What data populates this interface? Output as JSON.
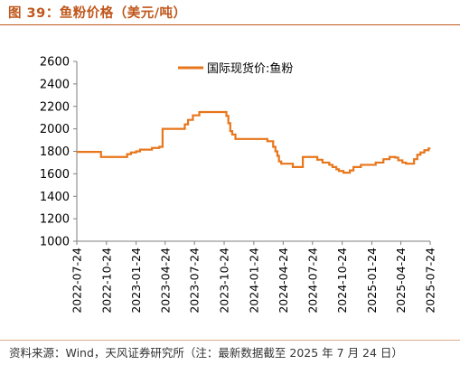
{
  "figure": {
    "title": "图 39：鱼粉价格（美元/吨）",
    "source": "资料来源：Wind，天风证券研究所（注：最新数据截至 2025 年 7 月 24 日）"
  },
  "colors": {
    "accent": "#c0571c",
    "series": "#e8761b"
  },
  "chart_data": {
    "type": "line",
    "title": "",
    "xlabel": "",
    "ylabel": "",
    "ylim": [
      1000,
      2600
    ],
    "yticks": [
      "1000",
      "1200",
      "1400",
      "1600",
      "1800",
      "2000",
      "2200",
      "2400",
      "2600"
    ],
    "xlim": [
      "2022-07-24",
      "2025-07-24"
    ],
    "xticks": [
      "2022-07-24",
      "2022-10-24",
      "2023-01-24",
      "2023-04-24",
      "2023-07-24",
      "2023-10-24",
      "2024-01-24",
      "2024-04-24",
      "2024-07-24",
      "2024-10-24",
      "2025-01-24",
      "2025-04-24",
      "2025-07-24"
    ],
    "grid": false,
    "legend": "top-center",
    "series": [
      {
        "name": "国际现货价:鱼粉",
        "points": [
          [
            "2022-07-24",
            1795
          ],
          [
            "2022-10-07",
            1795
          ],
          [
            "2022-10-07",
            1750
          ],
          [
            "2022-12-27",
            1750
          ],
          [
            "2022-12-27",
            1775
          ],
          [
            "2023-01-08",
            1775
          ],
          [
            "2023-01-08",
            1790
          ],
          [
            "2023-01-24",
            1790
          ],
          [
            "2023-01-24",
            1800
          ],
          [
            "2023-02-05",
            1800
          ],
          [
            "2023-02-05",
            1815
          ],
          [
            "2023-03-14",
            1815
          ],
          [
            "2023-03-14",
            1830
          ],
          [
            "2023-04-06",
            1830
          ],
          [
            "2023-04-06",
            1840
          ],
          [
            "2023-04-16",
            1840
          ],
          [
            "2023-04-16",
            2000
          ],
          [
            "2023-06-24",
            2000
          ],
          [
            "2023-06-24",
            2040
          ],
          [
            "2023-07-04",
            2040
          ],
          [
            "2023-07-04",
            2080
          ],
          [
            "2023-07-19",
            2080
          ],
          [
            "2023-07-19",
            2120
          ],
          [
            "2023-08-08",
            2120
          ],
          [
            "2023-08-08",
            2150
          ],
          [
            "2023-10-31",
            2150
          ],
          [
            "2023-10-31",
            2115
          ],
          [
            "2023-11-06",
            2115
          ],
          [
            "2023-11-06",
            2050
          ],
          [
            "2023-11-12",
            2050
          ],
          [
            "2023-11-12",
            1980
          ],
          [
            "2023-11-18",
            1980
          ],
          [
            "2023-11-18",
            1950
          ],
          [
            "2023-11-28",
            1950
          ],
          [
            "2023-11-28",
            1910
          ],
          [
            "2024-03-06",
            1910
          ],
          [
            "2024-03-06",
            1890
          ],
          [
            "2024-03-24",
            1890
          ],
          [
            "2024-03-24",
            1840
          ],
          [
            "2024-03-31",
            1840
          ],
          [
            "2024-03-31",
            1800
          ],
          [
            "2024-04-06",
            1800
          ],
          [
            "2024-04-06",
            1760
          ],
          [
            "2024-04-11",
            1760
          ],
          [
            "2024-04-11",
            1710
          ],
          [
            "2024-04-18",
            1710
          ],
          [
            "2024-04-18",
            1690
          ],
          [
            "2024-05-24",
            1690
          ],
          [
            "2024-05-24",
            1660
          ],
          [
            "2024-06-24",
            1660
          ],
          [
            "2024-06-24",
            1750
          ],
          [
            "2024-08-08",
            1750
          ],
          [
            "2024-08-08",
            1725
          ],
          [
            "2024-08-24",
            1725
          ],
          [
            "2024-08-24",
            1700
          ],
          [
            "2024-09-14",
            1700
          ],
          [
            "2024-09-14",
            1680
          ],
          [
            "2024-09-24",
            1680
          ],
          [
            "2024-09-24",
            1660
          ],
          [
            "2024-10-06",
            1660
          ],
          [
            "2024-10-06",
            1640
          ],
          [
            "2024-10-14",
            1640
          ],
          [
            "2024-10-14",
            1625
          ],
          [
            "2024-10-28",
            1625
          ],
          [
            "2024-10-28",
            1610
          ],
          [
            "2024-11-17",
            1610
          ],
          [
            "2024-11-17",
            1630
          ],
          [
            "2024-11-28",
            1630
          ],
          [
            "2024-11-28",
            1660
          ],
          [
            "2024-12-21",
            1660
          ],
          [
            "2024-12-21",
            1680
          ],
          [
            "2025-02-05",
            1680
          ],
          [
            "2025-02-05",
            1700
          ],
          [
            "2025-03-01",
            1700
          ],
          [
            "2025-03-01",
            1730
          ],
          [
            "2025-03-20",
            1730
          ],
          [
            "2025-03-20",
            1750
          ],
          [
            "2025-04-06",
            1750
          ],
          [
            "2025-04-06",
            1745
          ],
          [
            "2025-04-16",
            1745
          ],
          [
            "2025-04-16",
            1720
          ],
          [
            "2025-04-29",
            1720
          ],
          [
            "2025-04-29",
            1700
          ],
          [
            "2025-05-10",
            1700
          ],
          [
            "2025-05-10",
            1690
          ],
          [
            "2025-06-04",
            1690
          ],
          [
            "2025-06-04",
            1730
          ],
          [
            "2025-06-14",
            1730
          ],
          [
            "2025-06-14",
            1770
          ],
          [
            "2025-06-24",
            1770
          ],
          [
            "2025-06-24",
            1790
          ],
          [
            "2025-07-06",
            1790
          ],
          [
            "2025-07-06",
            1810
          ],
          [
            "2025-07-19",
            1810
          ],
          [
            "2025-07-19",
            1825
          ],
          [
            "2025-07-24",
            1825
          ]
        ]
      }
    ]
  }
}
